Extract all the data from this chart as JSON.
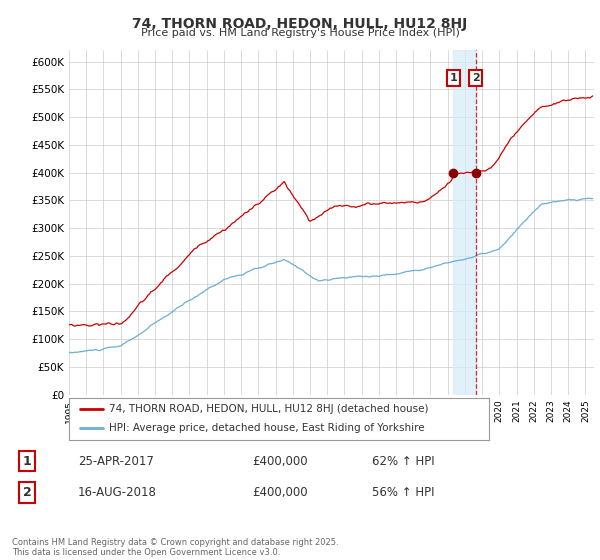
{
  "title": "74, THORN ROAD, HEDON, HULL, HU12 8HJ",
  "subtitle": "Price paid vs. HM Land Registry's House Price Index (HPI)",
  "legend_line1": "74, THORN ROAD, HEDON, HULL, HU12 8HJ (detached house)",
  "legend_line2": "HPI: Average price, detached house, East Riding of Yorkshire",
  "hpi_color": "#6baed6",
  "price_color": "#cc0000",
  "marker_color": "#8b0000",
  "vspan_color": "#d6eaf8",
  "vline_color": "#cc0000",
  "transaction1_date": 2017.32,
  "transaction1_price": 400000,
  "transaction2_date": 2018.62,
  "transaction2_price": 400000,
  "ylim": [
    0,
    620000
  ],
  "xlim_start": 1995,
  "xlim_end": 2025.5,
  "ytick_step": 50000,
  "footer": "Contains HM Land Registry data © Crown copyright and database right 2025.\nThis data is licensed under the Open Government Licence v3.0.",
  "background_color": "#ffffff",
  "grid_color": "#cccccc",
  "text_color": "#333333",
  "footer_color": "#666666"
}
